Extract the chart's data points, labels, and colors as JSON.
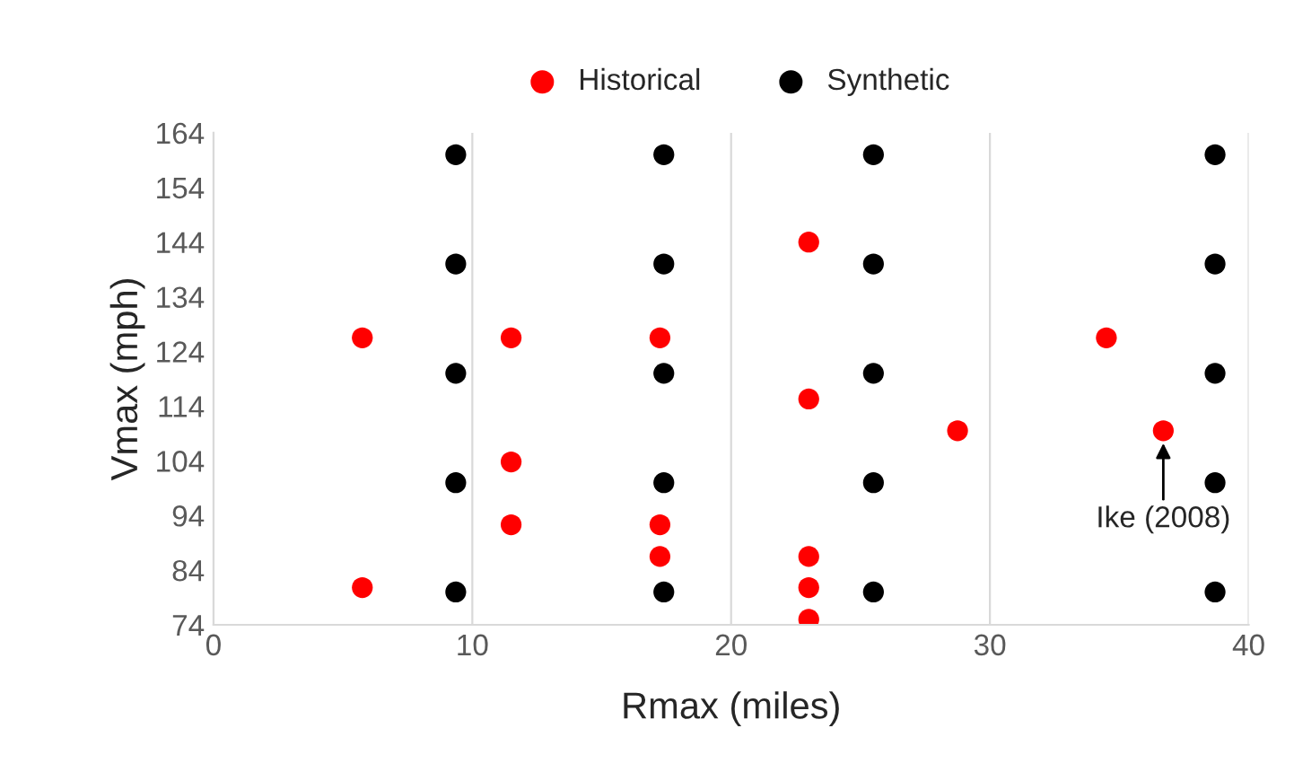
{
  "chart_data": {
    "type": "scatter",
    "xlabel": "Rmax (miles)",
    "ylabel": "Vmax (mph)",
    "xlim": [
      0,
      40
    ],
    "xticks": [
      0,
      10,
      20,
      30,
      40
    ],
    "ylim": [
      74,
      164
    ],
    "yticks": [
      74,
      84,
      94,
      104,
      114,
      124,
      134,
      144,
      154,
      164
    ],
    "grid": "x",
    "legend": "top",
    "marker": "circle",
    "series": [
      {
        "name": "Historical",
        "color": "#ff0000",
        "x": [
          5.75,
          5.75,
          11.5,
          11.5,
          11.5,
          17.25,
          17.25,
          17.25,
          23,
          23,
          23,
          23,
          23,
          28.75,
          34.5,
          36.7
        ],
        "values": [
          126.5,
          80.8,
          126.5,
          103.8,
          92.3,
          126.5,
          92.3,
          86.5,
          144,
          115.3,
          86.5,
          80.8,
          75,
          109.5,
          126.5,
          109.5
        ]
      },
      {
        "name": "Synthetic",
        "color": "#000000",
        "x": [
          9.36,
          9.36,
          9.36,
          9.36,
          9.36,
          17.4,
          17.4,
          17.4,
          17.4,
          17.4,
          25.5,
          25.5,
          25.5,
          25.5,
          25.5,
          38.7,
          38.7,
          38.7,
          38.7,
          38.7
        ],
        "values": [
          80,
          100,
          120,
          140,
          160,
          80,
          100,
          120,
          140,
          160,
          80,
          100,
          120,
          140,
          160,
          80,
          100,
          120,
          140,
          160
        ]
      }
    ],
    "annotations": [
      {
        "text": "Ike (2008)",
        "x": 36.7,
        "y": 109.5
      }
    ]
  }
}
